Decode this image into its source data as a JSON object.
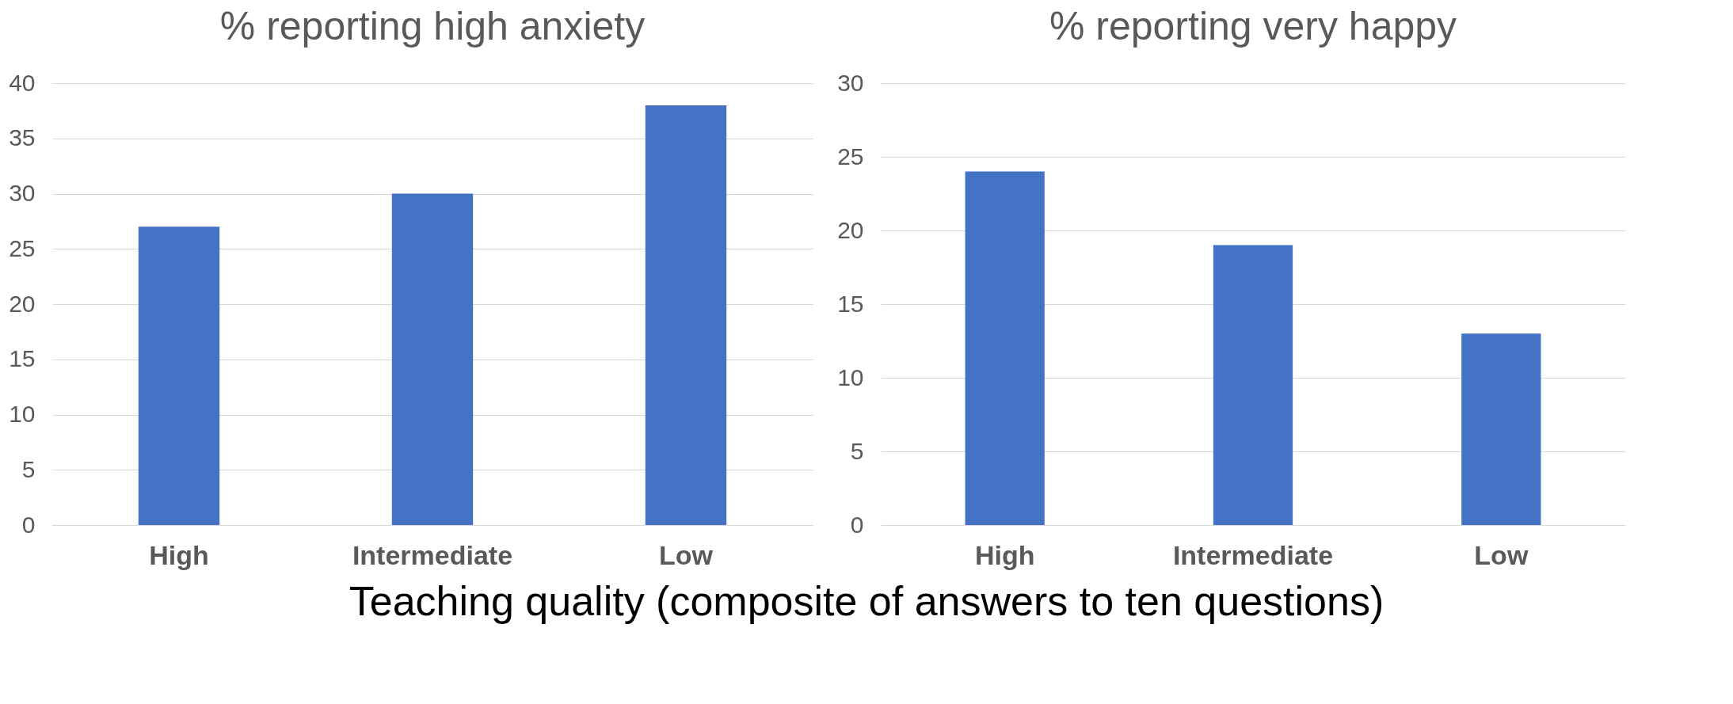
{
  "chart_data": [
    {
      "type": "bar",
      "title": "% reporting high anxiety",
      "xlabel": "Teaching quality (composite of answers to ten questions)",
      "categories": [
        "High",
        "Intermediate",
        "Low"
      ],
      "values": [
        27,
        30,
        38
      ],
      "color": "#4472c4",
      "ylim": [
        0,
        40
      ],
      "yticks": [
        0,
        5,
        10,
        15,
        20,
        25,
        30,
        35,
        40
      ],
      "grid": "y"
    },
    {
      "type": "bar",
      "title": "% reporting very happy",
      "categories": [
        "High",
        "Intermediate",
        "Low"
      ],
      "values": [
        24,
        19,
        13
      ],
      "color": "#4472c4",
      "ylim": [
        0,
        30
      ],
      "yticks": [
        0,
        5,
        10,
        15,
        20,
        25,
        30
      ],
      "grid": "y"
    }
  ]
}
